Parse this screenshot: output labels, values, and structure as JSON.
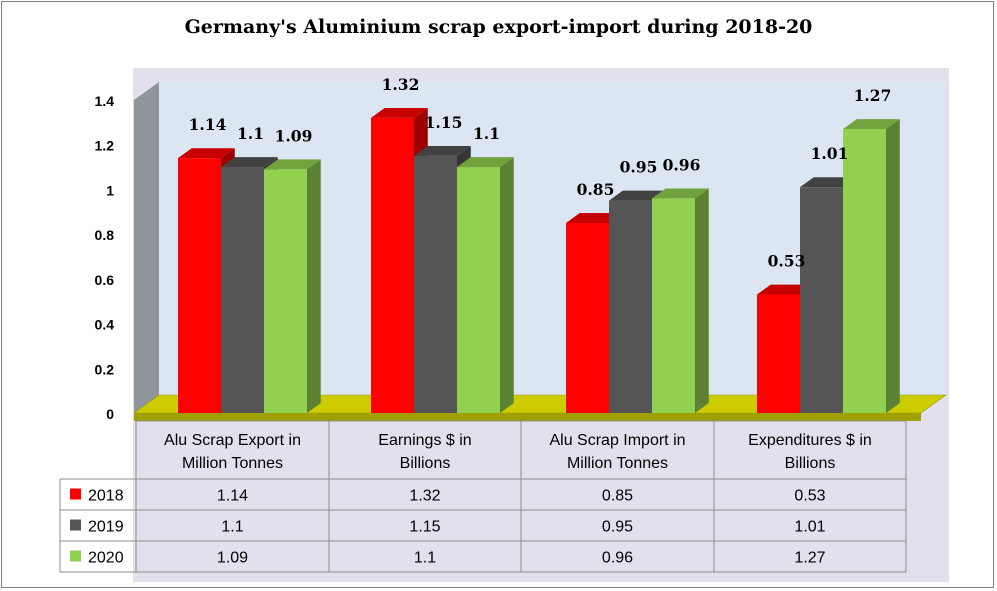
{
  "chart_data": {
    "type": "bar",
    "title": "Germany's Aluminium scrap export-import during 2018-20",
    "categories": [
      [
        "Alu Scrap Export in",
        "Million Tonnes"
      ],
      [
        "Earnings $ in",
        "Billions"
      ],
      [
        "Alu Scrap Import in",
        "Million Tonnes"
      ],
      [
        "Expenditures $ in",
        "Billions"
      ]
    ],
    "series": [
      {
        "name": "2018",
        "color": "#ff0000",
        "values": [
          1.14,
          1.32,
          0.85,
          0.53
        ],
        "labels": [
          "1.14",
          "1.32",
          "0.85",
          "0.53"
        ]
      },
      {
        "name": "2019",
        "color": "#555555",
        "values": [
          1.1,
          1.15,
          0.95,
          1.01
        ],
        "labels": [
          "1.1",
          "1.15",
          "0.95",
          "1.01"
        ]
      },
      {
        "name": "2020",
        "color": "#92d050",
        "values": [
          1.09,
          1.1,
          0.96,
          1.27
        ],
        "labels": [
          "1.09",
          "1.1",
          "0.96",
          "1.27"
        ]
      }
    ],
    "yticks": [
      "0",
      "0.2",
      "0.4",
      "0.6",
      "0.8",
      "1",
      "1.2",
      "1.4"
    ],
    "ylim": [
      0,
      1.4
    ],
    "grid": false,
    "legend": "data table",
    "style": "3d-clustered-column",
    "colors": {
      "plot_wall": "#dce6f2",
      "outer_area": "#e4dfec",
      "side_wall": "#8e969c",
      "floor": "#cccc00"
    }
  }
}
